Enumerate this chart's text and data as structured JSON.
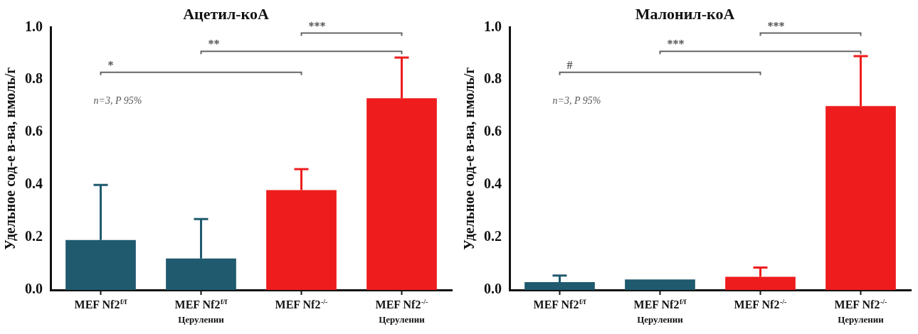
{
  "chart_data": [
    {
      "type": "bar",
      "title": "Ацетил-коA",
      "ylabel": "Удельное сод-е в-ва, нмоль/г",
      "categories": [
        "MEF Nf2$^{f/f}$",
        "MEF Nf2$^{f/f}$\nЦерулении",
        "MEF Nf2$^{-/-}$",
        "MEF Nf2$^{-/-}$\nЦерулении"
      ],
      "values": [
        0.19,
        0.12,
        0.38,
        0.73
      ],
      "colors": [
        "#1f5a6e",
        "#1f5a6e",
        "#ee1c1c",
        "#ee1c1c"
      ],
      "errors": [
        [
          0.19,
          0.4
        ],
        [
          0.12,
          0.27
        ],
        [
          0.38,
          0.46
        ],
        [
          0.73,
          0.885
        ]
      ],
      "ylim": [
        0,
        1
      ],
      "yticks": [
        {
          "value": 0,
          "label": "0.0"
        },
        {
          "value": 0.2,
          "label": "0.2"
        },
        {
          "value": 0.4,
          "label": "0.4"
        },
        {
          "value": 0.6,
          "label": "0.6"
        },
        {
          "value": 0.8,
          "label": "0.8"
        },
        {
          "value": 1,
          "label": "1.0"
        }
      ],
      "grid": false,
      "legend": false,
      "annotations": [
        "*",
        "**",
        "***",
        "n=3, P 95%"
      ]
    },
    {
      "type": "bar",
      "title": "Малонил-коA",
      "ylabel": "Удельное сод-е в-ва, нмоль/г",
      "categories": [
        "MEF Nf2$^{f/f}$",
        "MEF Nf2$^{f/f}$\nЦерулении",
        "MEF Nf2$^{-/-}$",
        "MEF Nf2$^{-/-}$\nЦерулении"
      ],
      "values": [
        0.03,
        0.04,
        0.05,
        0.7
      ],
      "colors": [
        "#1f5a6e",
        "#1f5a6e",
        "#ee1c1c",
        "#ee1c1c"
      ],
      "errors": [
        [
          0.03,
          0.055
        ],
        null,
        [
          0.05,
          0.085
        ],
        [
          0.7,
          0.89
        ]
      ],
      "ylim": [
        0,
        1
      ],
      "yticks": [
        {
          "value": 0,
          "label": "0.0"
        },
        {
          "value": 0.2,
          "label": "0.2"
        },
        {
          "value": 0.4,
          "label": "0.4"
        },
        {
          "value": 0.6,
          "label": "0.6"
        },
        {
          "value": 0.8,
          "label": "0.8"
        },
        {
          "value": 1,
          "label": "1.0"
        }
      ],
      "grid": false,
      "legend": false,
      "annotations": [
        "#",
        "***",
        "***",
        "n=3, P 95%"
      ]
    }
  ]
}
